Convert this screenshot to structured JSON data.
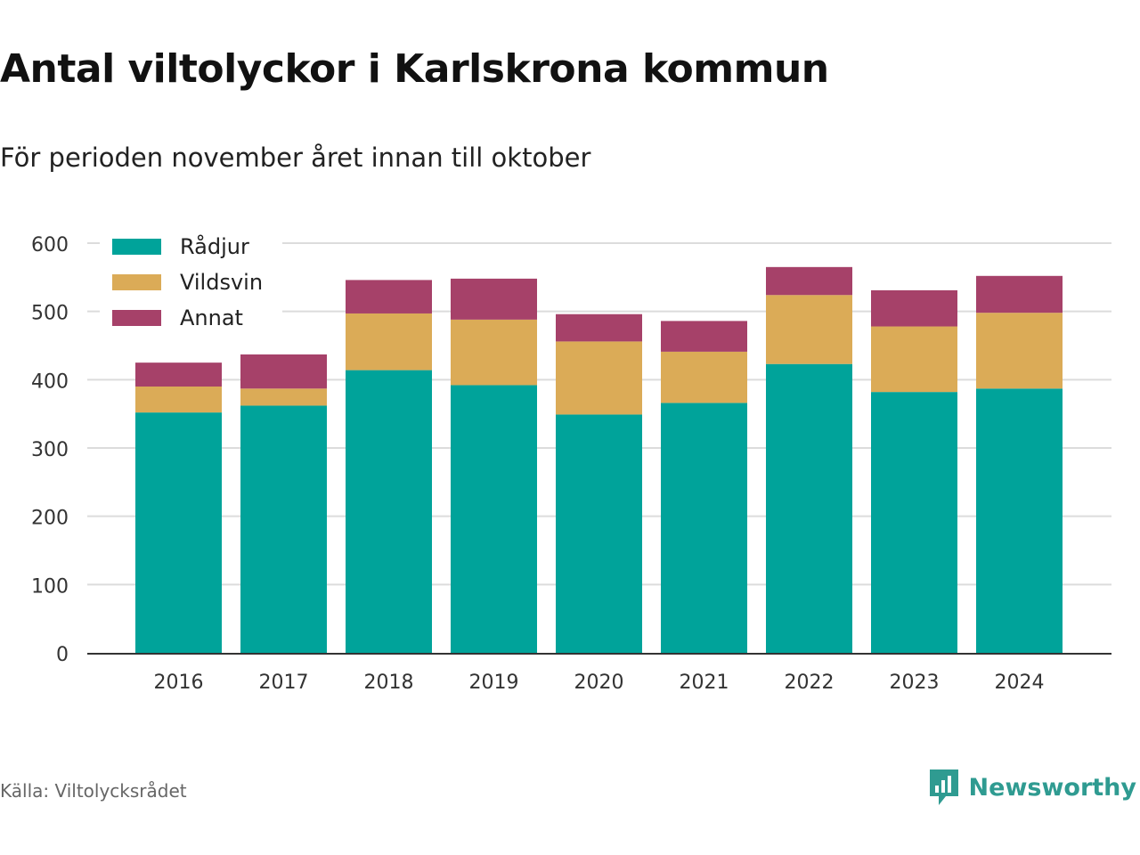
{
  "header": {
    "title": "Antal viltolyckor i Karlskrona kommun",
    "subtitle": "För perioden november året innan till oktober"
  },
  "footer": {
    "source": "Källa: Viltolycksrådet",
    "brand": "Newsworthy",
    "brand_icon": "bar-chart-speech-bubble-icon",
    "brand_color": "#2f9b91"
  },
  "chart_data": {
    "type": "bar",
    "stacked": true,
    "categories": [
      "2016",
      "2017",
      "2018",
      "2019",
      "2020",
      "2021",
      "2022",
      "2023",
      "2024"
    ],
    "series": [
      {
        "name": "Rådjur",
        "color": "#00a39a",
        "values": [
          352,
          362,
          414,
          392,
          349,
          366,
          423,
          382,
          387
        ]
      },
      {
        "name": "Vildsvin",
        "color": "#dbab57",
        "values": [
          38,
          25,
          83,
          96,
          107,
          75,
          101,
          96,
          111
        ]
      },
      {
        "name": "Annat",
        "color": "#a64169",
        "values": [
          35,
          50,
          49,
          60,
          40,
          45,
          41,
          53,
          54
        ]
      }
    ],
    "ylim": [
      0,
      600
    ],
    "yticks": [
      0,
      100,
      200,
      300,
      400,
      500,
      600
    ],
    "grid": true,
    "legend_position": "top-left"
  }
}
